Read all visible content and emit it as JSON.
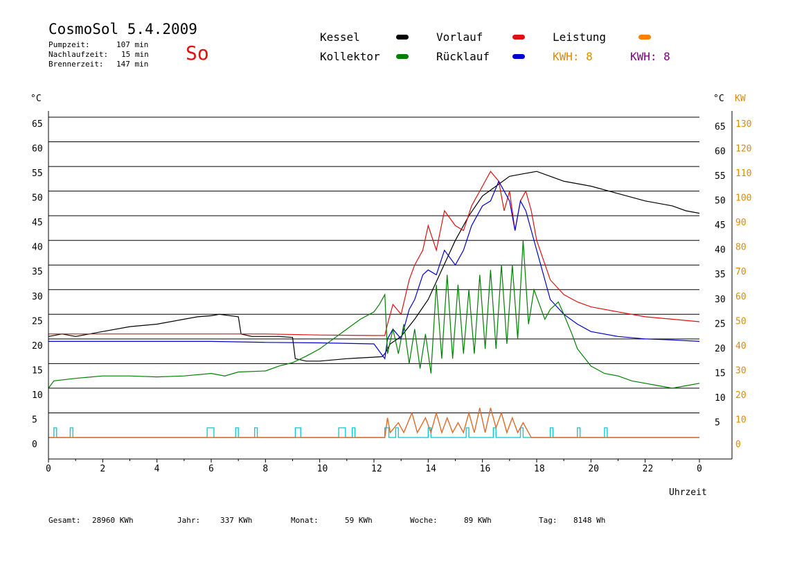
{
  "header": {
    "title": "CosmoSol 5.4.2009",
    "weekday": "So",
    "stats": [
      {
        "label": "Pumpzeit:",
        "value": "107 min"
      },
      {
        "label": "Nachlaufzeit:",
        "value": "15 min"
      },
      {
        "label": "Brennerzeit:",
        "value": "147 min"
      }
    ]
  },
  "legend": [
    {
      "label": "Kessel",
      "color": "#000000"
    },
    {
      "label": "Vorlauf",
      "color": "#e01010"
    },
    {
      "label": "Leistung",
      "color": "#ff8000"
    },
    {
      "label": "Kollektor",
      "color": "#008000"
    },
    {
      "label": "Rücklauf",
      "color": "#0000cc"
    }
  ],
  "kwh": [
    {
      "label": "KWH: 8",
      "color": "#e08a00"
    },
    {
      "label": "KWH: 8",
      "color": "#800080"
    }
  ],
  "footer": [
    {
      "label": "Gesamt:",
      "value": "28960 KWh"
    },
    {
      "label": "Jahr:",
      "value": "337 KWh"
    },
    {
      "label": "Monat:",
      "value": "59 KWh"
    },
    {
      "label": "Woche:",
      "value": "89 KWh"
    },
    {
      "label": "Tag:",
      "value": "8148 Wh"
    }
  ],
  "chart_data": {
    "type": "line",
    "xlabel": "Uhrzeit",
    "x_ticks": [
      "0",
      "2",
      "4",
      "6",
      "8",
      "10",
      "12",
      "14",
      "16",
      "18",
      "20",
      "22",
      "0"
    ],
    "xlim": [
      0,
      24
    ],
    "ylabel_left": "°C",
    "ylabel_right": "°C",
    "ylabel_right2": "KW",
    "ylim": [
      0,
      65
    ],
    "y_ticks_left": [
      0,
      5,
      10,
      15,
      20,
      25,
      30,
      35,
      40,
      45,
      50,
      55,
      60,
      65
    ],
    "y_ticks_right": [
      5,
      10,
      15,
      20,
      25,
      30,
      35,
      40,
      45,
      50,
      55,
      60,
      65
    ],
    "y_ticks_kw": [
      0,
      10,
      20,
      30,
      40,
      50,
      60,
      70,
      80,
      90,
      100,
      110,
      120,
      130
    ],
    "grid": true,
    "series": [
      {
        "name": "Kessel",
        "color": "#000000",
        "x": [
          0,
          0.5,
          1,
          2,
          3,
          4,
          5,
          5.5,
          6,
          6.3,
          7,
          7.1,
          7.5,
          8,
          8.5,
          9,
          9.1,
          9.5,
          10,
          11,
          12,
          12.3,
          12.4,
          12.6,
          13,
          13.5,
          14,
          14.5,
          15,
          15.5,
          16,
          16.5,
          17,
          17.5,
          18,
          18.5,
          19,
          20,
          21,
          22,
          23,
          23.5,
          24
        ],
        "y": [
          20.5,
          21,
          20.5,
          21.5,
          22.5,
          23,
          24,
          24.5,
          24.7,
          25,
          24.5,
          21,
          20.5,
          20.5,
          20.5,
          20.3,
          16,
          15.5,
          15.5,
          16,
          16.3,
          16.4,
          17,
          19,
          20.5,
          24,
          28,
          34,
          40,
          45,
          49,
          51,
          53,
          53.5,
          54,
          53,
          52,
          51,
          49.5,
          48,
          47,
          46,
          45.5
        ]
      },
      {
        "name": "Vorlauf",
        "color": "#e01010",
        "x": [
          0,
          2,
          4,
          6,
          8,
          10,
          12,
          12.4,
          12.5,
          12.7,
          13,
          13.3,
          13.5,
          13.8,
          14,
          14.3,
          14.6,
          15,
          15.3,
          15.6,
          16,
          16.3,
          16.6,
          16.8,
          17,
          17.2,
          17.4,
          17.6,
          17.8,
          18,
          18.5,
          19,
          19.5,
          20,
          21,
          22,
          23,
          24
        ],
        "y": [
          21,
          21,
          21,
          21,
          21,
          20.8,
          20.7,
          20.7,
          23,
          27,
          25,
          32,
          35,
          38,
          43,
          38,
          46,
          43,
          42,
          47,
          51,
          54,
          52,
          46,
          50,
          42,
          48,
          50,
          46,
          40,
          32,
          29,
          27.5,
          26.5,
          25.5,
          24.5,
          24,
          23.5
        ]
      },
      {
        "name": "Rücklauf",
        "color": "#0000cc",
        "x": [
          0,
          2,
          4,
          6,
          8,
          10,
          12,
          12.4,
          12.5,
          12.7,
          13,
          13.3,
          13.5,
          13.8,
          14,
          14.3,
          14.6,
          15,
          15.3,
          15.6,
          16,
          16.3,
          16.6,
          16.8,
          17,
          17.2,
          17.4,
          17.6,
          17.8,
          18,
          18.5,
          19,
          19.5,
          20,
          21,
          22,
          23,
          24
        ],
        "y": [
          19.5,
          19.5,
          19.5,
          19.5,
          19.3,
          19.2,
          19,
          16,
          20,
          22,
          20,
          26,
          28,
          33,
          34,
          33,
          38,
          35,
          38,
          43,
          47,
          48,
          52,
          50,
          48,
          42,
          48,
          46,
          42,
          38,
          28,
          25,
          23,
          21.5,
          20.5,
          20,
          19.8,
          19.5
        ]
      },
      {
        "name": "Kollektor",
        "color": "#008000",
        "x": [
          0,
          0.2,
          1,
          2,
          3,
          4,
          5,
          6,
          6.5,
          7,
          8,
          8.5,
          9,
          9.5,
          10,
          10.5,
          11,
          11.5,
          12,
          12.2,
          12.4,
          12.5,
          12.7,
          12.9,
          13.1,
          13.3,
          13.5,
          13.7,
          13.9,
          14.1,
          14.3,
          14.5,
          14.7,
          14.9,
          15.1,
          15.3,
          15.5,
          15.7,
          15.9,
          16.1,
          16.3,
          16.5,
          16.7,
          16.9,
          17.1,
          17.3,
          17.5,
          17.7,
          17.9,
          18.1,
          18.3,
          18.5,
          18.8,
          19,
          19.3,
          19.5,
          20,
          20.5,
          21,
          21.5,
          22,
          22.5,
          23,
          23.5,
          24
        ],
        "y": [
          10,
          11.5,
          12,
          12.5,
          12.5,
          12.3,
          12.5,
          13,
          12.5,
          13.3,
          13.5,
          14.5,
          15.2,
          16.5,
          18,
          20,
          22,
          24,
          25.5,
          27,
          29,
          17,
          22,
          17,
          23,
          15,
          22,
          14,
          21,
          13,
          31,
          16,
          33,
          16,
          31,
          17,
          30,
          17,
          33,
          18,
          34,
          18,
          35,
          19,
          35,
          20,
          40,
          23,
          30,
          27,
          24,
          26,
          27.5,
          25,
          21,
          18,
          14.5,
          13,
          12.5,
          11.5,
          11,
          10.5,
          10,
          10.5,
          11
        ]
      }
    ],
    "power_series": {
      "name": "Leistung",
      "color": "#ff8000",
      "x": [
        0,
        12.4,
        12.5,
        12.6,
        12.9,
        13.1,
        13.4,
        13.6,
        13.9,
        14.1,
        14.3,
        14.5,
        14.7,
        14.9,
        15.1,
        15.3,
        15.5,
        15.7,
        15.9,
        16.1,
        16.3,
        16.5,
        16.7,
        16.9,
        17.1,
        17.3,
        17.5,
        17.7,
        17.8,
        24
      ],
      "y": [
        0,
        0,
        4,
        1,
        3,
        1,
        5,
        1,
        4,
        1,
        5,
        1,
        4,
        1,
        3,
        1,
        5,
        1,
        6,
        1,
        6,
        2,
        5,
        1,
        4,
        1,
        3,
        1,
        0,
        0
      ]
    },
    "pump_on": [
      [
        0.2,
        0.3
      ],
      [
        0.8,
        0.9
      ],
      [
        5.85,
        6.1
      ],
      [
        6.9,
        7.0
      ],
      [
        7.6,
        7.7
      ],
      [
        9.1,
        9.3
      ],
      [
        10.7,
        10.95
      ],
      [
        11.2,
        11.3
      ],
      [
        12.4,
        12.55
      ],
      [
        12.8,
        12.9
      ],
      [
        14,
        14.1
      ],
      [
        15.4,
        15.5
      ],
      [
        16.4,
        16.5
      ],
      [
        17.4,
        17.5
      ],
      [
        18.5,
        18.6
      ],
      [
        19.5,
        19.6
      ],
      [
        20.5,
        20.6
      ]
    ]
  }
}
